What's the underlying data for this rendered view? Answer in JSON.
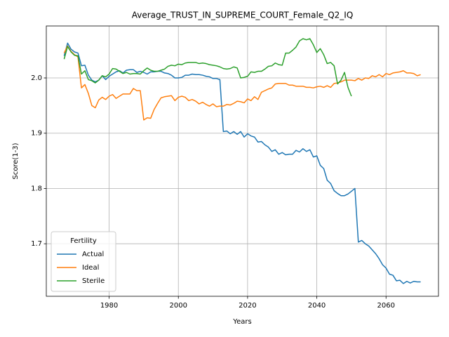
{
  "chart_data": {
    "type": "line",
    "title": "Average_TRUST_IN_SUPREME_COURT_Female_Q2_IQ",
    "x_label": "Years",
    "y_label": "Score(1-3)",
    "legend_title": "Fertility",
    "legend": "lower left",
    "grid": true,
    "x": [
      1967,
      1968,
      1969,
      1970,
      1971,
      1972,
      1973,
      1974,
      1975,
      1976,
      1977,
      1978,
      1979,
      1980,
      1981,
      1982,
      1983,
      1984,
      1985,
      1986,
      1987,
      1988,
      1989,
      1990,
      1991,
      1992,
      1993,
      1994,
      1995,
      1996,
      1997,
      1998,
      1999,
      2000,
      2001,
      2002,
      2003,
      2004,
      2005,
      2006,
      2007,
      2008,
      2009,
      2010,
      2011,
      2012,
      2013,
      2014,
      2015,
      2016,
      2017,
      2018,
      2019,
      2020,
      2021,
      2022,
      2023,
      2024,
      2025,
      2026,
      2027,
      2028,
      2029,
      2030,
      2031,
      2032,
      2033,
      2034,
      2035,
      2036,
      2037,
      2038,
      2039,
      2040,
      2041,
      2042,
      2043,
      2044,
      2045,
      2046,
      2047,
      2048,
      2049,
      2050,
      2051,
      2052,
      2053,
      2054,
      2055,
      2056,
      2057,
      2058,
      2059,
      2060,
      2061,
      2062,
      2063,
      2064,
      2065,
      2066,
      2067,
      2068,
      2069,
      2070
    ],
    "xlim": [
      1961.85,
      2075.15
    ],
    "xticks": [
      1980,
      2000,
      2020,
      2040,
      2060
    ],
    "ylim": [
      1.605,
      2.094
    ],
    "yticks": [
      1.7,
      1.8,
      1.9,
      {
        "value": 2,
        "label": "2.0"
      }
    ],
    "series": [
      {
        "name": "Actual",
        "color": "#1f77b4",
        "values": [
          2.04,
          2.063,
          2.052,
          2.047,
          2.045,
          2.022,
          2.023,
          2.005,
          1.996,
          1.993,
          1.996,
          2.004,
          1.997,
          2.003,
          2.007,
          2.011,
          2.013,
          2.009,
          2.014,
          2.015,
          2.015,
          2.01,
          2.012,
          2.01,
          2.007,
          2.011,
          2.011,
          2.012,
          2.012,
          2.009,
          2.008,
          2.005,
          2.0,
          2.0,
          2.001,
          2.005,
          2.005,
          2.007,
          2.006,
          2.006,
          2.005,
          2.003,
          2.002,
          1.999,
          1.999,
          1.997,
          1.903,
          1.904,
          1.899,
          1.903,
          1.898,
          1.903,
          1.893,
          1.899,
          1.895,
          1.893,
          1.884,
          1.885,
          1.879,
          1.875,
          1.867,
          1.87,
          1.862,
          1.865,
          1.861,
          1.862,
          1.862,
          1.869,
          1.866,
          1.872,
          1.867,
          1.87,
          1.857,
          1.859,
          1.842,
          1.836,
          1.815,
          1.809,
          1.796,
          1.791,
          1.787,
          1.787,
          1.79,
          1.795,
          1.8,
          1.703,
          1.706,
          1.7,
          1.696,
          1.689,
          1.682,
          1.673,
          1.662,
          1.656,
          1.645,
          1.643,
          1.633,
          1.634,
          1.628,
          1.632,
          1.629,
          1.632,
          1.631,
          1.631
        ]
      },
      {
        "name": "Ideal",
        "color": "#ff7f0e",
        "values": [
          2.045,
          2.058,
          2.048,
          2.042,
          2.038,
          1.982,
          1.988,
          1.972,
          1.95,
          1.946,
          1.96,
          1.965,
          1.961,
          1.967,
          1.97,
          1.963,
          1.967,
          1.971,
          1.971,
          1.971,
          1.981,
          1.977,
          1.977,
          1.924,
          1.928,
          1.927,
          1.943,
          1.954,
          1.964,
          1.966,
          1.967,
          1.968,
          1.959,
          1.965,
          1.967,
          1.965,
          1.959,
          1.961,
          1.958,
          1.953,
          1.956,
          1.952,
          1.949,
          1.953,
          1.948,
          1.949,
          1.949,
          1.952,
          1.951,
          1.954,
          1.958,
          1.957,
          1.955,
          1.962,
          1.959,
          1.966,
          1.961,
          1.974,
          1.977,
          1.98,
          1.982,
          1.989,
          1.99,
          1.99,
          1.99,
          1.987,
          1.987,
          1.985,
          1.985,
          1.985,
          1.983,
          1.983,
          1.982,
          1.984,
          1.985,
          1.983,
          1.986,
          1.983,
          1.99,
          1.991,
          1.993,
          1.996,
          1.996,
          1.996,
          1.995,
          1.999,
          1.996,
          2.0,
          1.999,
          2.004,
          2.002,
          2.006,
          2.002,
          2.008,
          2.006,
          2.009,
          2.01,
          2.011,
          2.013,
          2.009,
          2.009,
          2.008,
          2.004,
          2.006
        ]
      },
      {
        "name": "Sterile",
        "color": "#2ca02c",
        "values": [
          2.034,
          2.057,
          2.047,
          2.041,
          2.04,
          2.007,
          2.013,
          1.997,
          1.995,
          1.991,
          1.996,
          2.004,
          2.002,
          2.007,
          2.017,
          2.016,
          2.012,
          2.008,
          2.01,
          2.007,
          2.008,
          2.008,
          2.007,
          2.013,
          2.018,
          2.014,
          2.012,
          2.012,
          2.014,
          2.016,
          2.021,
          2.023,
          2.022,
          2.025,
          2.024,
          2.027,
          2.028,
          2.028,
          2.028,
          2.026,
          2.027,
          2.026,
          2.024,
          2.023,
          2.022,
          2.02,
          2.017,
          2.016,
          2.017,
          2.02,
          2.018,
          2.0,
          2.001,
          2.003,
          2.011,
          2.01,
          2.012,
          2.012,
          2.016,
          2.021,
          2.022,
          2.027,
          2.024,
          2.023,
          2.045,
          2.045,
          2.05,
          2.056,
          2.067,
          2.071,
          2.069,
          2.071,
          2.06,
          2.046,
          2.053,
          2.042,
          2.026,
          2.028,
          2.022,
          1.989,
          1.996,
          2.01,
          1.983,
          1.967,
          null,
          null,
          null,
          null,
          null,
          null,
          null,
          null,
          null,
          null,
          null,
          null,
          null,
          null,
          null,
          null,
          null,
          null,
          null,
          null
        ]
      }
    ]
  }
}
